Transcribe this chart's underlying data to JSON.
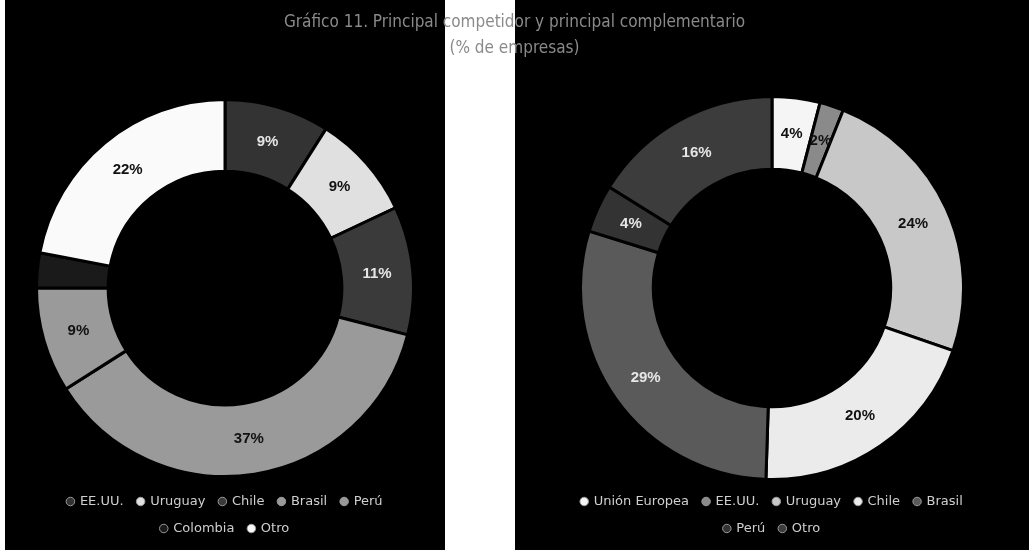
{
  "chart_data": [
    {
      "type": "donut",
      "title": "Gráfico 11. Principal competidor y principal complementario",
      "subtitle": "(% de empresas)",
      "categories": [
        "EE.UU.",
        "Uruguay",
        "Chile",
        "Brasil",
        "Perú",
        "Colombia",
        "Otro"
      ],
      "values": [
        9,
        9,
        11,
        37,
        9,
        3,
        22
      ],
      "colors": [
        "#333333",
        "#e0e0e0",
        "#3a3a3a",
        "#9a9a9a",
        "#9a9a9a",
        "#1a1a1a",
        "#fafafa"
      ],
      "value_labels": [
        "9%",
        "9%",
        "11%",
        "37%",
        "9%",
        null,
        "22%"
      ],
      "legend": "bottom"
    },
    {
      "type": "donut",
      "categories": [
        "Unión Europea",
        "EE.UU.",
        "Uruguay",
        "Chile",
        "Brasil",
        "Perú",
        "Otro"
      ],
      "values": [
        4,
        2,
        24,
        20,
        29,
        4,
        16
      ],
      "colors": [
        "#f5f5f5",
        "#8a8a8a",
        "#c8c8c8",
        "#ebebeb",
        "#5a5a5a",
        "#333333",
        "#3c3c3c"
      ],
      "value_labels": [
        "4%",
        "2%",
        "24%",
        "20%",
        "29%",
        "4%",
        "16%"
      ],
      "legend": "bottom"
    }
  ]
}
